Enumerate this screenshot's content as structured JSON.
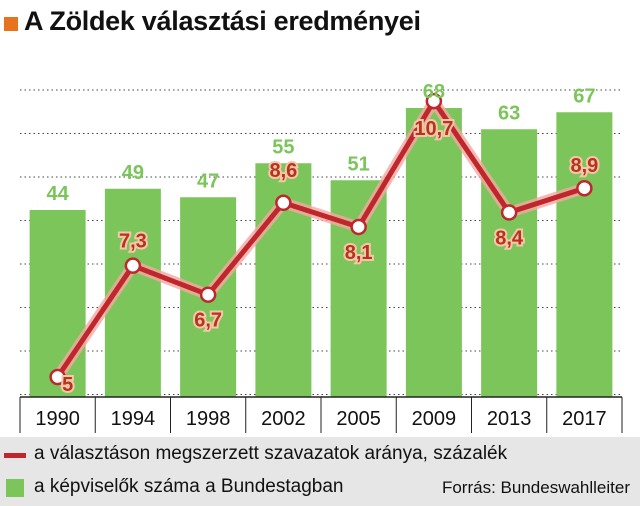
{
  "title": "A Zöldek választási eredményei",
  "colors": {
    "accent": "#e8731e",
    "bar": "#7cc55b",
    "bar_label": "#7cc55b",
    "line": "#c0272d",
    "point_label": "#b5341e"
  },
  "chart_data": {
    "type": "bar",
    "title": "A Zöldek választási eredményei",
    "categories": [
      "1990",
      "1994",
      "1998",
      "2002",
      "2005",
      "2009",
      "2013",
      "2017"
    ],
    "series": [
      {
        "name": "a képviselők száma a Bundestagban",
        "type": "bar",
        "values": [
          44,
          49,
          47,
          55,
          51,
          68,
          63,
          67
        ],
        "labels": [
          "44",
          "49",
          "47",
          "55",
          "51",
          "68",
          "63",
          "67"
        ]
      },
      {
        "name": "a választáson megszerzett szavazatok aránya, százalék",
        "type": "line",
        "values": [
          5,
          7.3,
          6.7,
          8.6,
          8.1,
          10.7,
          8.4,
          8.9
        ],
        "labels": [
          "5",
          "7,3",
          "6,7",
          "8,6",
          "8,1",
          "10,7",
          "8,4",
          "8,9"
        ]
      }
    ],
    "grid": true,
    "legend_position": "bottom"
  },
  "legend": {
    "line_label": "a választáson megszerzett szavazatok aránya, százalék",
    "bar_label": "a képviselők száma a Bundestagban",
    "source": "Forrás: Bundeswahlleiter"
  }
}
